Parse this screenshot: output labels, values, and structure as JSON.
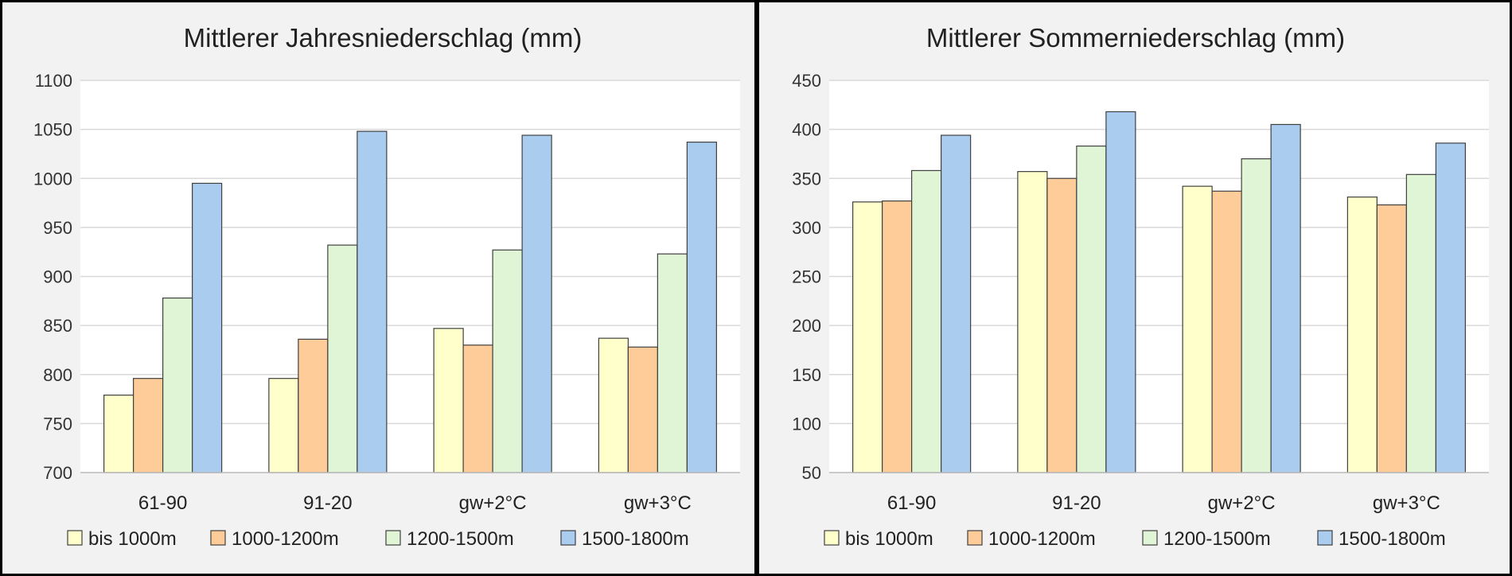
{
  "chart_data": [
    {
      "type": "bar",
      "title": "Mittlerer Jahresniederschlag (mm)",
      "categories": [
        "61-90",
        "91-20",
        "gw+2°C",
        "gw+3°C"
      ],
      "ylim": [
        700,
        1100
      ],
      "yticks": [
        700,
        750,
        800,
        850,
        900,
        950,
        1000,
        1050,
        1100
      ],
      "grid": true,
      "legend_position": "bottom",
      "series": [
        {
          "name": "bis 1000m",
          "color": "#ffffcc",
          "values": [
            779,
            796,
            847,
            837
          ]
        },
        {
          "name": "1000-1200m",
          "color": "#fdcc99",
          "values": [
            796,
            836,
            830,
            828
          ]
        },
        {
          "name": "1200-1500m",
          "color": "#dff5d6",
          "values": [
            878,
            932,
            927,
            923
          ]
        },
        {
          "name": "1500-1800m",
          "color": "#a9ccef",
          "values": [
            995,
            1048,
            1044,
            1037
          ]
        }
      ]
    },
    {
      "type": "bar",
      "title": "Mittlerer Sommerniederschlag (mm)",
      "categories": [
        "61-90",
        "91-20",
        "gw+2°C",
        "gw+3°C"
      ],
      "ylim": [
        50,
        450
      ],
      "yticks": [
        50,
        100,
        150,
        200,
        250,
        300,
        350,
        400,
        450
      ],
      "grid": true,
      "legend_position": "bottom",
      "series": [
        {
          "name": "bis 1000m",
          "color": "#ffffcc",
          "values": [
            326,
            357,
            342,
            331
          ]
        },
        {
          "name": "1000-1200m",
          "color": "#fdcc99",
          "values": [
            327,
            350,
            337,
            323
          ]
        },
        {
          "name": "1200-1500m",
          "color": "#dff5d6",
          "values": [
            358,
            383,
            370,
            354
          ]
        },
        {
          "name": "1500-1800m",
          "color": "#a9ccef",
          "values": [
            394,
            418,
            405,
            386
          ]
        }
      ]
    }
  ]
}
